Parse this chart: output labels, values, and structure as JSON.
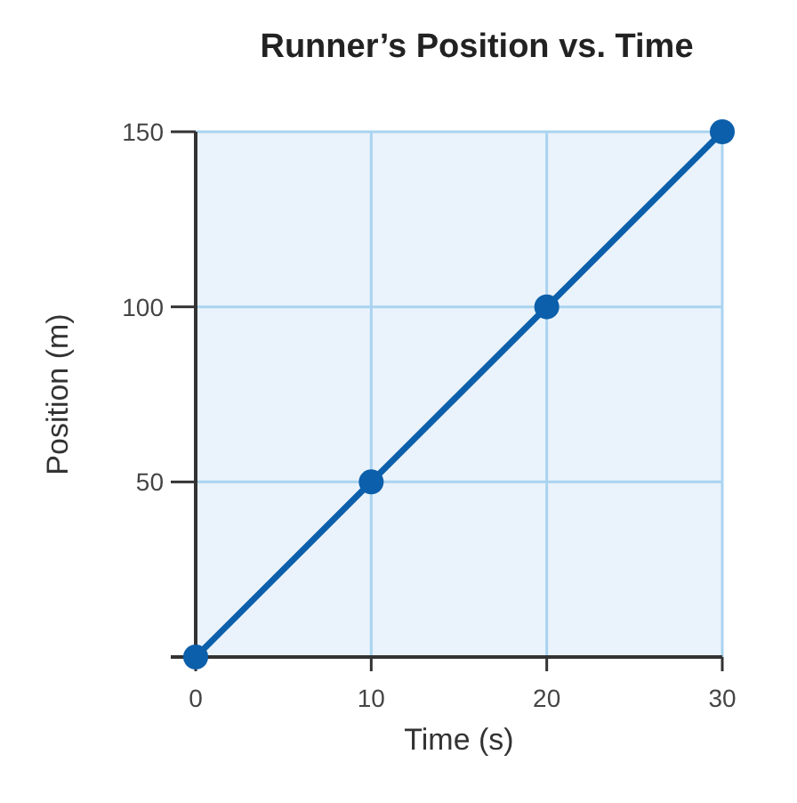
{
  "chart_data": {
    "type": "line",
    "title": "Runner’s Position vs. Time",
    "xlabel": "Time (s)",
    "ylabel": "Position (m)",
    "x": [
      0,
      10,
      20,
      30
    ],
    "series": [
      {
        "color": "#0c5faa",
        "values": [
          0,
          50,
          100,
          150
        ]
      }
    ],
    "xlim": [
      0,
      30
    ],
    "ylim": [
      0,
      150
    ],
    "xticks": [
      0,
      10,
      20,
      30
    ],
    "yticks": [
      {
        "value": 0,
        "label": null
      },
      50,
      100,
      150
    ],
    "grid": true,
    "marker": "circle",
    "line_style": "solid"
  }
}
